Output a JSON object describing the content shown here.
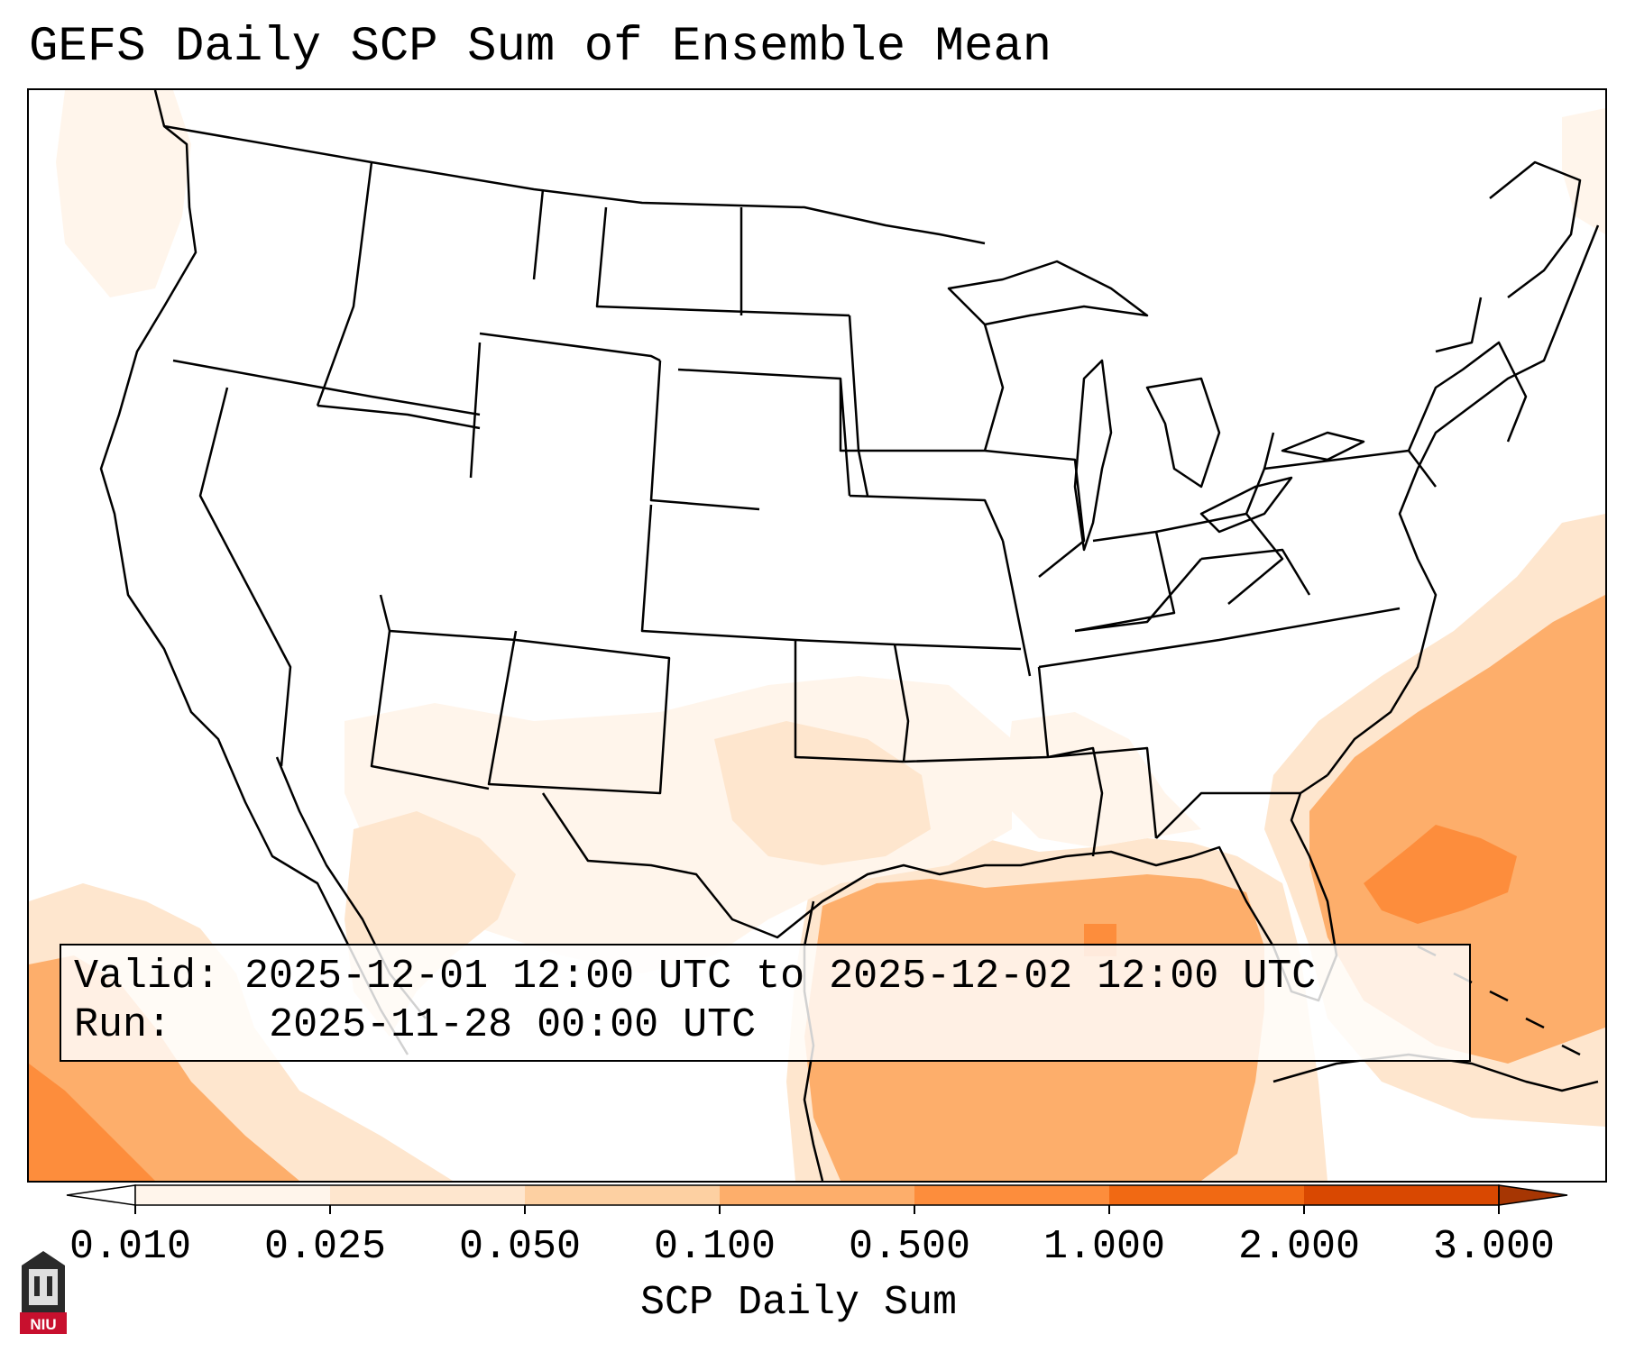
{
  "title": "GEFS Daily SCP Sum of Ensemble Mean",
  "info": {
    "valid_label": "Valid:",
    "valid_value": "2025-12-01 12:00 UTC to 2025-12-02 12:00 UTC",
    "run_label": "Run:",
    "run_value": "2025-11-28 00:00 UTC"
  },
  "colorbar": {
    "title": "SCP Daily Sum",
    "ticks": [
      "0.010",
      "0.025",
      "0.050",
      "0.100",
      "0.500",
      "1.000",
      "2.000",
      "3.000"
    ],
    "colors": [
      "#fff5eb",
      "#fee6ce",
      "#fdd0a2",
      "#fdae6b",
      "#fd8d3c",
      "#f16913",
      "#d94801",
      "#a63603"
    ]
  },
  "legend_field_colors": {
    "very_light": "#fff5eb",
    "light": "#fee6ce",
    "medium": "#fdd0a2",
    "strong": "#fdae6b",
    "strongest": "#fd8d3c"
  },
  "logo_text": "NIU"
}
